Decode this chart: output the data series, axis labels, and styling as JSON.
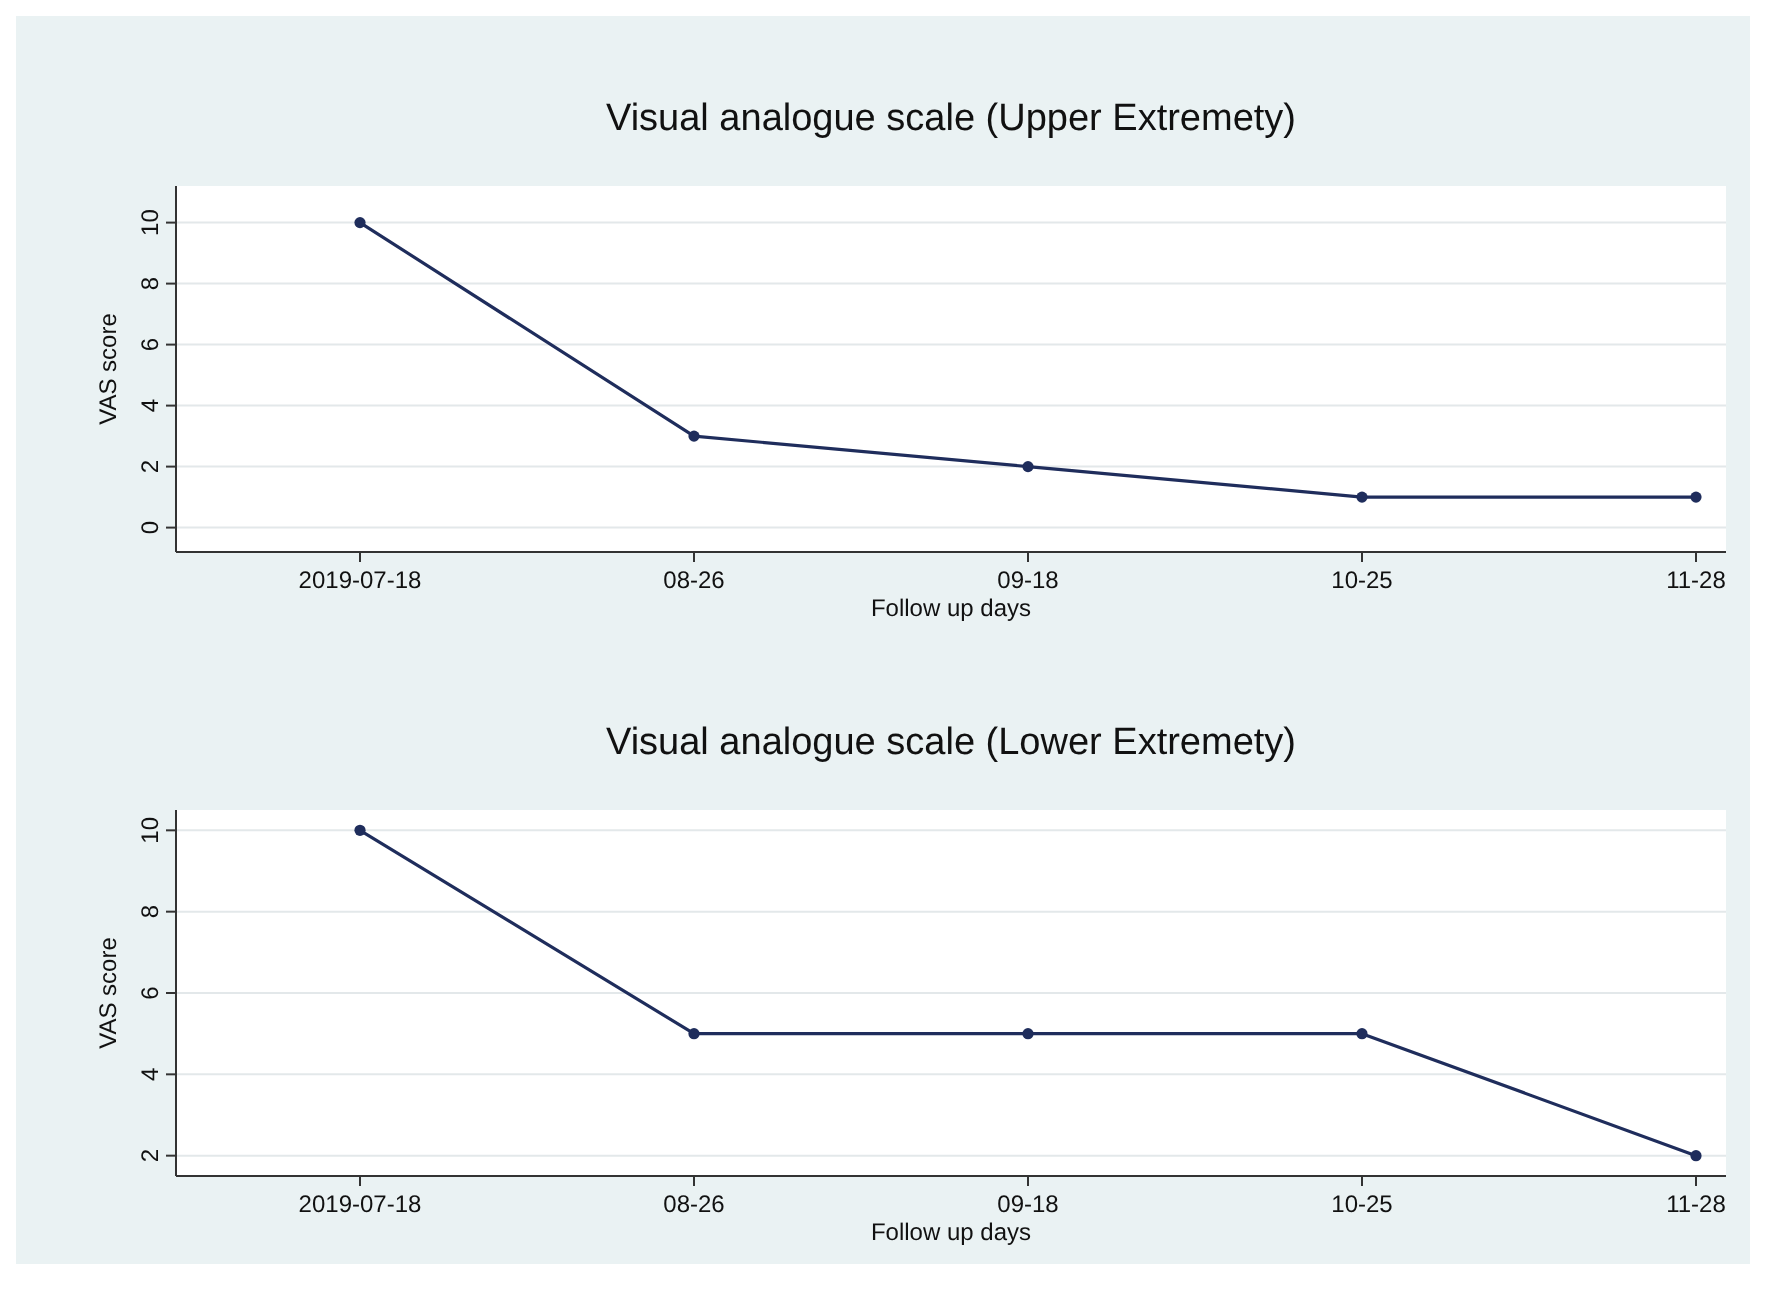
{
  "chart_data": [
    {
      "type": "line",
      "title": "Visual analogue scale (Upper Extremety)",
      "xlabel": "Follow up days",
      "ylabel": "VAS score",
      "categories": [
        "2019-07-18",
        "08-26",
        "09-18",
        "10-25",
        "11-28"
      ],
      "values": [
        10,
        3,
        2,
        1,
        1
      ],
      "color": "#1f2d5c",
      "ylim": [
        -0.8,
        11.2
      ],
      "yticks": [
        0,
        2,
        4,
        6,
        8,
        10
      ],
      "grid": "y",
      "marker": "circle"
    },
    {
      "type": "line",
      "title": "Visual analogue scale (Lower Extremety)",
      "xlabel": "Follow up days",
      "ylabel": "VAS score",
      "categories": [
        "2019-07-18",
        "08-26",
        "09-18",
        "10-25",
        "11-28"
      ],
      "values": [
        10,
        5,
        5,
        5,
        2
      ],
      "color": "#1f2d5c",
      "ylim": [
        1.5,
        10.5
      ],
      "yticks": [
        2,
        4,
        6,
        8,
        10
      ],
      "grid": "y",
      "marker": "circle"
    }
  ]
}
